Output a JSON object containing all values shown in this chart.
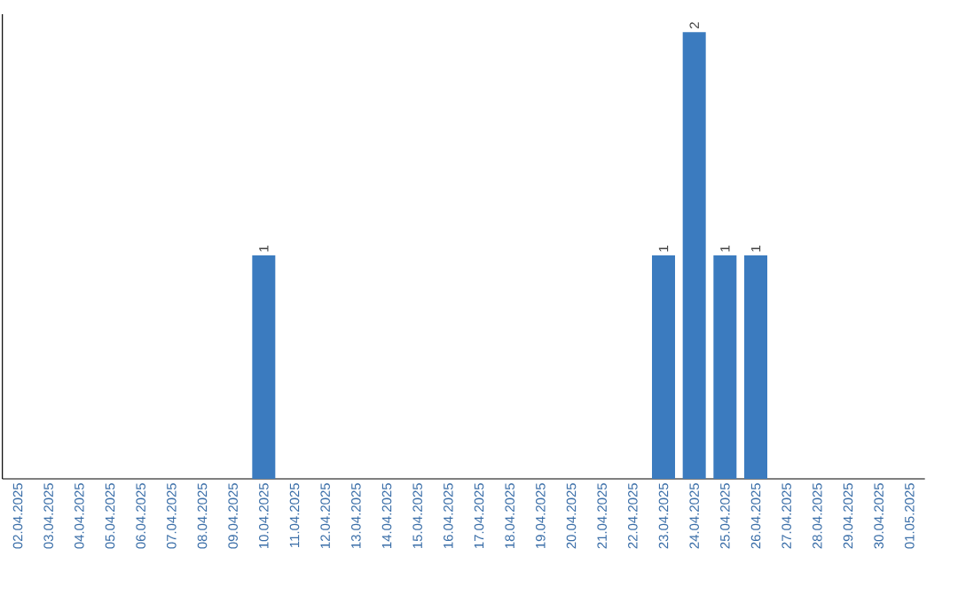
{
  "chart_data": {
    "type": "bar",
    "categories": [
      "02.04.2025",
      "03.04.2025",
      "04.04.2025",
      "05.04.2025",
      "06.04.2025",
      "07.04.2025",
      "08.04.2025",
      "09.04.2025",
      "10.04.2025",
      "11.04.2025",
      "12.04.2025",
      "13.04.2025",
      "14.04.2025",
      "15.04.2025",
      "16.04.2025",
      "17.04.2025",
      "18.04.2025",
      "19.04.2025",
      "20.04.2025",
      "21.04.2025",
      "22.04.2025",
      "23.04.2025",
      "24.04.2025",
      "25.04.2025",
      "26.04.2025",
      "27.04.2025",
      "28.04.2025",
      "29.04.2025",
      "30.04.2025",
      "01.05.2025"
    ],
    "values": [
      0,
      0,
      0,
      0,
      0,
      0,
      0,
      0,
      1,
      0,
      0,
      0,
      0,
      0,
      0,
      0,
      0,
      0,
      0,
      0,
      0,
      1,
      2,
      1,
      1,
      0,
      0,
      0,
      0,
      0
    ],
    "value_labels": [
      null,
      null,
      null,
      null,
      null,
      null,
      null,
      null,
      "1",
      null,
      null,
      null,
      null,
      null,
      null,
      null,
      null,
      null,
      null,
      null,
      null,
      "1",
      "2",
      "1",
      "1",
      null,
      null,
      null,
      null,
      null
    ],
    "color": "#3b7bbf",
    "tick_labels": "x",
    "grid": false,
    "legend": false
  }
}
